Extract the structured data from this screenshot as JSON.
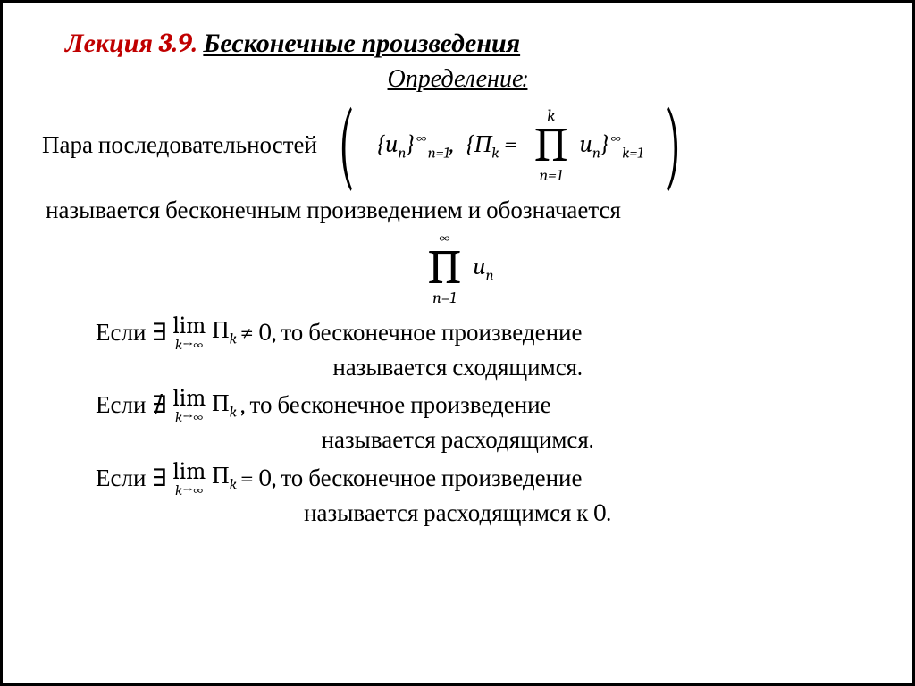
{
  "title": {
    "red": "Лекция 3.9.",
    "black": "Бесконечные произведения"
  },
  "subtitle": "Определение:",
  "pair_intro": "Пара последовательностей",
  "seq1_open": "{",
  "seq1_var": "u",
  "seq1_idx": "n",
  "seq1_close": "}",
  "seq1_lower": "n=1",
  "seq1_upper": "∞",
  "comma": ",",
  "seq2_open": "{П",
  "seq2_idx": "k",
  "seq2_eq": " =",
  "prod1_top": "k",
  "prod1_sym": "∏",
  "prod1_bot": "n=1",
  "prod1_term_u": "u",
  "prod1_term_n": "n",
  "seq2_close": "}",
  "seq2_lower": "k=1",
  "seq2_upper": "∞",
  "line_called": "называется бесконечным произведением и обозначается",
  "prod2_top": "∞",
  "prod2_sym": "∏",
  "prod2_bot": "n=1",
  "prod2_term_u": "u",
  "prod2_term_n": "n",
  "cond1_pre": "Если ∃",
  "lim_text": "lim",
  "lim_sub": "k→∞",
  "pi_k_1": " П",
  "sub_k": "k",
  "cond1_post": " ≠ 0, то бесконечное произведение",
  "cond1_res": "называется сходящимся.",
  "cond2_pre": "Если ∄",
  "cond2_post": " , то бесконечное произведение",
  "cond2_res": "называется расходящимся.",
  "cond3_pre": "Если ∃",
  "cond3_post": " = 0, то бесконечное произведение",
  "cond3_res": "называется расходящимся к 0.",
  "colors": {
    "red": "#c00000",
    "text": "#000000",
    "bg": "#ffffff"
  },
  "fontsize_body": 27,
  "fontsize_title": 30
}
